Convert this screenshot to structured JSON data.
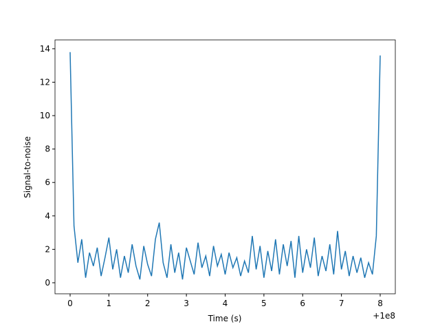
{
  "chart_data": {
    "type": "line",
    "xlabel": "Time (s)",
    "ylabel": "Signal-to-noise",
    "x_offset_label": "+1e8",
    "x": [
      0,
      0.1,
      0.2,
      0.3,
      0.4,
      0.5,
      0.6,
      0.7,
      0.8,
      0.9,
      1.0,
      1.1,
      1.2,
      1.3,
      1.4,
      1.5,
      1.6,
      1.7,
      1.8,
      1.9,
      2.0,
      2.1,
      2.2,
      2.3,
      2.4,
      2.5,
      2.6,
      2.7,
      2.8,
      2.9,
      3.0,
      3.1,
      3.2,
      3.3,
      3.4,
      3.5,
      3.6,
      3.7,
      3.8,
      3.9,
      4.0,
      4.1,
      4.2,
      4.3,
      4.4,
      4.5,
      4.6,
      4.7,
      4.8,
      4.9,
      5.0,
      5.1,
      5.2,
      5.3,
      5.4,
      5.5,
      5.6,
      5.7,
      5.8,
      5.9,
      6.0,
      6.1,
      6.2,
      6.3,
      6.4,
      6.5,
      6.6,
      6.7,
      6.8,
      6.9,
      7.0,
      7.1,
      7.2,
      7.3,
      7.4,
      7.5,
      7.6,
      7.7,
      7.8,
      7.9,
      8.0
    ],
    "series": [
      {
        "color": "#1f77b4",
        "values": [
          13.8,
          3.4,
          1.2,
          2.6,
          0.3,
          1.8,
          1.0,
          2.1,
          0.4,
          1.5,
          2.7,
          0.8,
          2.0,
          0.3,
          1.6,
          0.6,
          2.3,
          1.0,
          0.2,
          2.2,
          1.1,
          0.4,
          2.6,
          3.6,
          1.2,
          0.3,
          2.3,
          0.6,
          1.8,
          0.2,
          2.1,
          1.3,
          0.5,
          2.4,
          0.9,
          1.6,
          0.4,
          2.2,
          1.0,
          1.7,
          0.5,
          1.8,
          0.9,
          1.5,
          0.4,
          1.3,
          0.6,
          2.8,
          0.8,
          2.2,
          0.3,
          1.9,
          0.7,
          2.6,
          0.5,
          2.3,
          1.0,
          2.5,
          0.3,
          2.8,
          0.6,
          2.0,
          0.9,
          2.7,
          0.4,
          1.6,
          0.7,
          2.3,
          0.5,
          3.1,
          0.8,
          1.9,
          0.4,
          1.6,
          0.6,
          1.5,
          0.3,
          1.2,
          0.5,
          2.8,
          13.6
        ]
      }
    ],
    "xlim": [
      -0.39,
      8.39
    ],
    "ylim": [
      -0.66,
      14.53
    ],
    "xticks": [
      0,
      1,
      2,
      3,
      4,
      5,
      6,
      7,
      8
    ],
    "yticks": [
      0,
      2,
      4,
      6,
      8,
      10,
      12,
      14
    ]
  }
}
